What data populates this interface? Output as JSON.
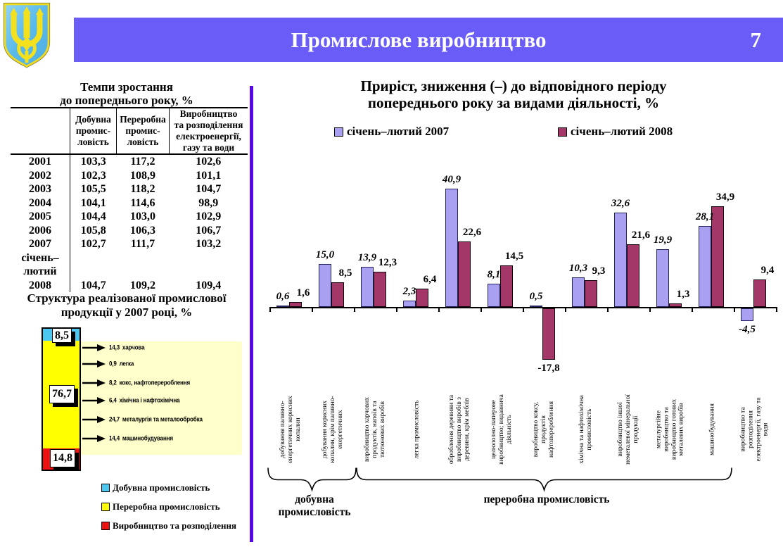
{
  "header": {
    "title": "Промислове виробництво",
    "page_number": "7"
  },
  "growth_table": {
    "title": "Темпи зростання\nдо попереднього року, %",
    "col_headers": [
      "Добувна\nпромис-\nловість",
      "Переробна\nпромис-\nловість",
      "Виробництво\nта розподілення\nелектроенергії,\nгазу та води"
    ],
    "rows": [
      {
        "year": "2001",
        "values": [
          "103,3",
          "117,2",
          "102,6"
        ]
      },
      {
        "year": "2002",
        "values": [
          "102,3",
          "108,9",
          "101,1"
        ]
      },
      {
        "year": "2003",
        "values": [
          "105,5",
          "118,2",
          "104,7"
        ]
      },
      {
        "year": "2004",
        "values": [
          "104,1",
          "114,6",
          "98,9"
        ]
      },
      {
        "year": "2005",
        "values": [
          "104,4",
          "103,0",
          "102,9"
        ]
      },
      {
        "year": "2006",
        "values": [
          "105,8",
          "106,3",
          "106,7"
        ]
      },
      {
        "year": "2007",
        "values": [
          "102,7",
          "111,7",
          "103,2"
        ]
      },
      {
        "year": "січень–\nлютий\n2008",
        "values": [
          "104,7",
          "109,2",
          "109,4"
        ]
      }
    ]
  },
  "chart_data": [
    {
      "type": "bar",
      "title": "Приріст, зниження (–) до відповідного періоду\nпопереднього року за видами діяльності, %",
      "grid": false,
      "legend_position": "top",
      "ylim": [
        -20,
        45
      ],
      "categories": [
        "добування паливно-\nенергетичних корисних\nкопалин",
        "добування корисних\nкопалин, крім паливно-\nенергетичних",
        "виробництво харчових\nпродуктів, напоїв та\nтютюнових виробів",
        "легка промисловість",
        "оброблення деревини та\nвиробництво виробів з\nдеревини, крім меблів",
        "целюлозно-паперове\nвиробництво; видавнича\nдіяльність",
        "виробництво коксу,\nпродуктів\nнафтоперероблення",
        "хімічна та нафтохімічна\nпромисловість",
        "виробництво іншої\nнеметалевої мінеральної\nпродукції",
        "металургійне\nвиробництво та\nвиробництво готових\nметалевих виробів",
        "машинобудування",
        "виробництво та\nрозподілення\nелектроенергії, газу та\nводи"
      ],
      "series": [
        {
          "name": "січень–лютий 2007",
          "color": "#A9A0F2",
          "values": [
            0.6,
            15.0,
            13.9,
            2.3,
            40.9,
            8.1,
            0.5,
            10.3,
            32.6,
            19.9,
            28.1,
            -4.5
          ],
          "labels": [
            "0,6",
            "15,0",
            "13,9",
            "2,3",
            "40,9",
            "8,1",
            "0,5",
            "10,3",
            "32,6",
            "19,9",
            "28,1",
            "-4,5"
          ]
        },
        {
          "name": "січень–лютий 2008",
          "color": "#A23768",
          "values": [
            1.6,
            8.5,
            12.3,
            6.4,
            22.6,
            14.5,
            -17.8,
            9.3,
            21.6,
            1.3,
            34.9,
            9.4
          ],
          "labels": [
            "1,6",
            "8,5",
            "12,3",
            "6,4",
            "22,6",
            "14,5",
            "-17,8",
            "9,3",
            "21,6",
            "1,3",
            "34,9",
            "9,4"
          ]
        }
      ],
      "groups": [
        {
          "label": "добувна\nпромисловість",
          "from": 0,
          "to": 1
        },
        {
          "label": "переробна промисловість",
          "from": 2,
          "to": 10
        }
      ]
    },
    {
      "type": "bar",
      "subtype": "stacked",
      "title": "Структура реалізованої промислової\nпродукції у 2007 році, %",
      "segments": [
        {
          "name": "Добувна промисловість",
          "value": 8.5,
          "label": "8,5",
          "color": "#4CC8F0"
        },
        {
          "name": "Переробна промисловість",
          "value": 76.7,
          "label": "76,7",
          "color": "#FFFF00"
        },
        {
          "name": "Виробництво та розподілення",
          "value": 14.8,
          "label": "14,8",
          "color": "#EE1111"
        }
      ],
      "callouts": [
        {
          "value": "14,3",
          "label": "харчова"
        },
        {
          "value": "0,9",
          "label": "легка"
        },
        {
          "value": "8,2",
          "label": "кокс, нафтоперероблення"
        },
        {
          "value": "6,4",
          "label": "хімічна і нафтохімічна"
        },
        {
          "value": "24,7",
          "label": "металургія та металообробка"
        },
        {
          "value": "14,4",
          "label": "машинобудування"
        }
      ],
      "legend": [
        "Добувна промисловість",
        "Переробна промисловість",
        "Виробництво та розподілення"
      ]
    }
  ],
  "colors": {
    "banner": "#6A5CF6",
    "divider": "#5807E8",
    "series_2007": "#A9A0F2",
    "series_2008": "#A23768",
    "segment_blue": "#4CC8F0",
    "segment_yellow": "#FFFF00",
    "segment_red": "#EE1111",
    "callout_panel": "#FFFFCC"
  }
}
